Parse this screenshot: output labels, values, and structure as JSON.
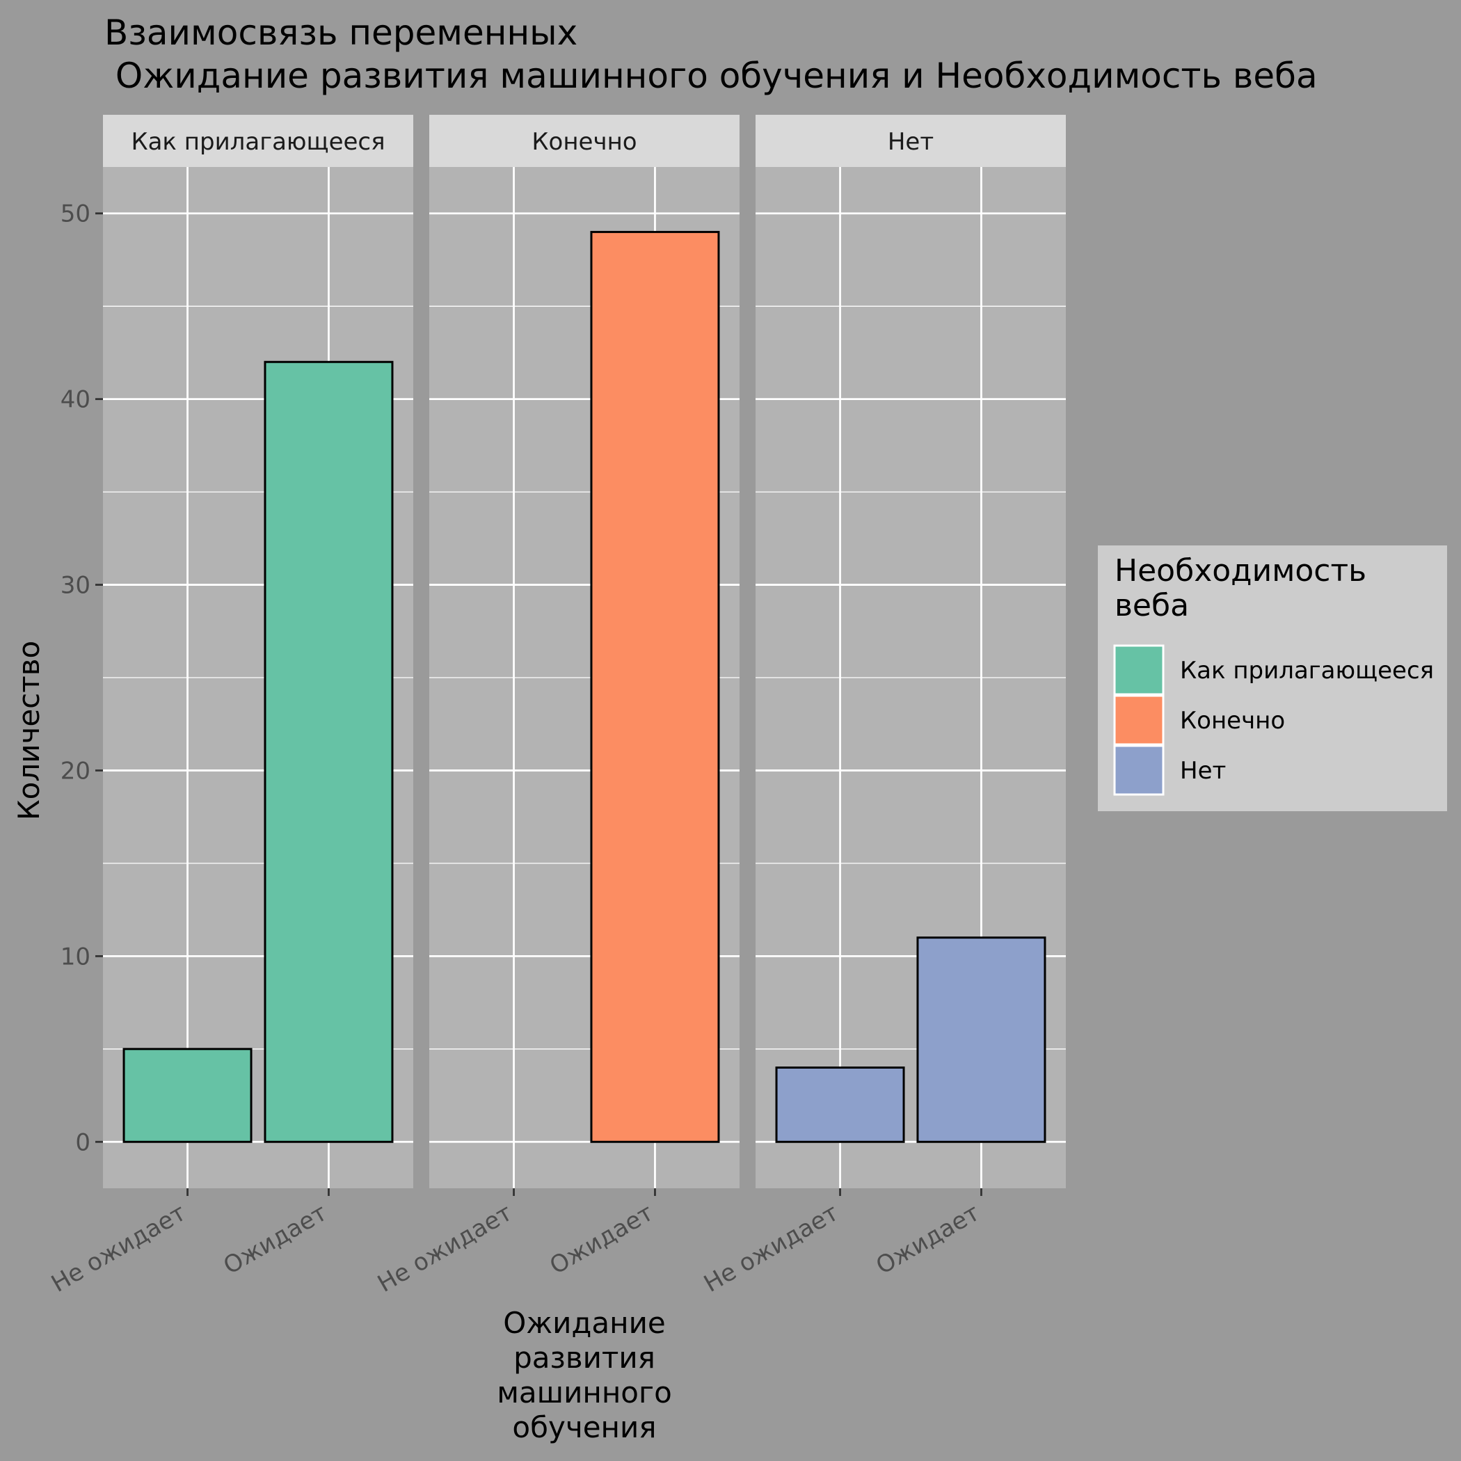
{
  "title": {
    "line1": "Взаимосвязь переменных",
    "line2": " Ожидание развития машинного обучения и Необходимость веба"
  },
  "colors": {
    "page_background": "#9a9a9a",
    "panel_background": "#b3b3b3",
    "strip_background": "#d9d9d9",
    "legend_background": "#cccccc",
    "grid": "#ffffff",
    "bar_outline": "#000000"
  },
  "chart_data": {
    "type": "bar",
    "faceted_by": "Необходимость веба",
    "categories": [
      "Не ожидает",
      "Ожидает"
    ],
    "xlabel": "Ожидание развития машинного обучения",
    "xlabel_lines": [
      "Ожидание",
      "развития",
      "машинного",
      "обучения"
    ],
    "ylabel": "Количество",
    "ylim": [
      -2.5,
      52.5
    ],
    "yticks": [
      0,
      10,
      20,
      30,
      40,
      50
    ],
    "grid": true,
    "legend_position": "right",
    "legend": {
      "title_lines": [
        "Необходимость",
        "веба"
      ],
      "entries": [
        {
          "label": "Как прилагающееся",
          "color": "#66c2a5"
        },
        {
          "label": "Конечно",
          "color": "#fc8d62"
        },
        {
          "label": "Нет",
          "color": "#8da0cb"
        }
      ]
    },
    "panels": [
      {
        "name": "Как прилагающееся",
        "color": "#66c2a5",
        "values": [
          5,
          42
        ]
      },
      {
        "name": "Конечно",
        "color": "#fc8d62",
        "values": [
          null,
          49
        ]
      },
      {
        "name": "Нет",
        "color": "#8da0cb",
        "values": [
          4,
          11
        ]
      }
    ]
  }
}
